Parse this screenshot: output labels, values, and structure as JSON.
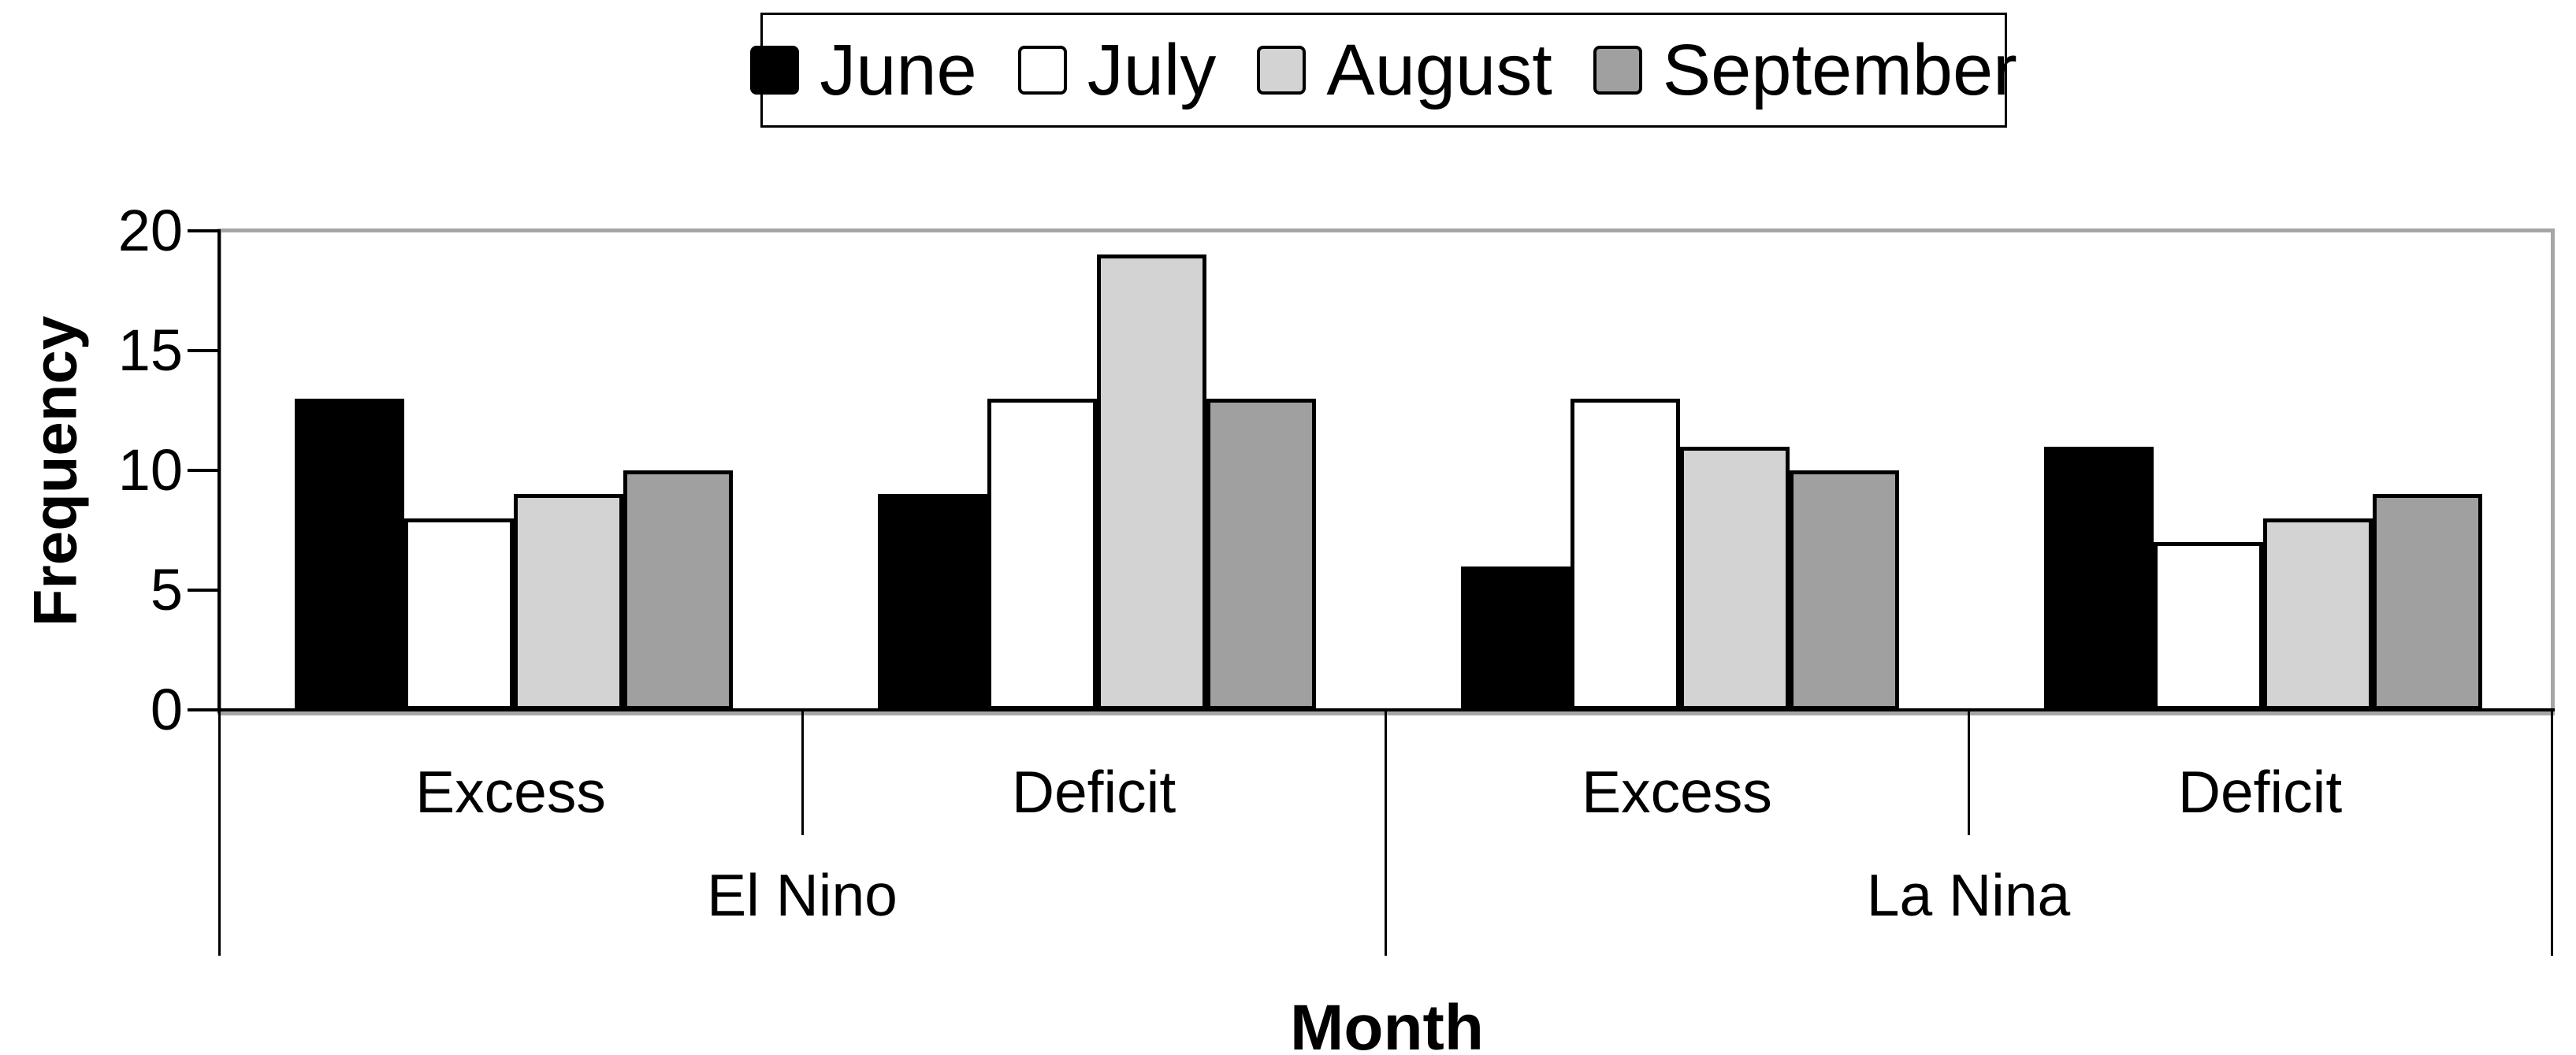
{
  "chart_data": {
    "type": "bar",
    "title": "",
    "ylabel": "Frequency",
    "xlabel": "Month",
    "ylim": [
      0,
      20
    ],
    "yticks": [
      0,
      5,
      10,
      15,
      20
    ],
    "grid": false,
    "legend_position": "top-center",
    "group_labels": [
      "El Nino",
      "La Nina"
    ],
    "categories": [
      {
        "group": "El Nino",
        "label": "Excess"
      },
      {
        "group": "El Nino",
        "label": "Deficit"
      },
      {
        "group": "La Nina",
        "label": "Excess"
      },
      {
        "group": "La Nina",
        "label": "Deficit"
      }
    ],
    "series": [
      {
        "name": "June",
        "color": "#000000",
        "values": [
          13,
          9,
          6,
          11
        ]
      },
      {
        "name": "July",
        "color": "#ffffff",
        "values": [
          8,
          13,
          13,
          7
        ]
      },
      {
        "name": "August",
        "color": "#d3d3d3",
        "values": [
          9,
          19,
          11,
          8
        ]
      },
      {
        "name": "September",
        "color": "#a0a0a0",
        "values": [
          10,
          13,
          10,
          9
        ]
      }
    ],
    "colors": {
      "plot_border": "#a6a6a6",
      "axis_line": "#000000",
      "background": "#ffffff"
    }
  }
}
